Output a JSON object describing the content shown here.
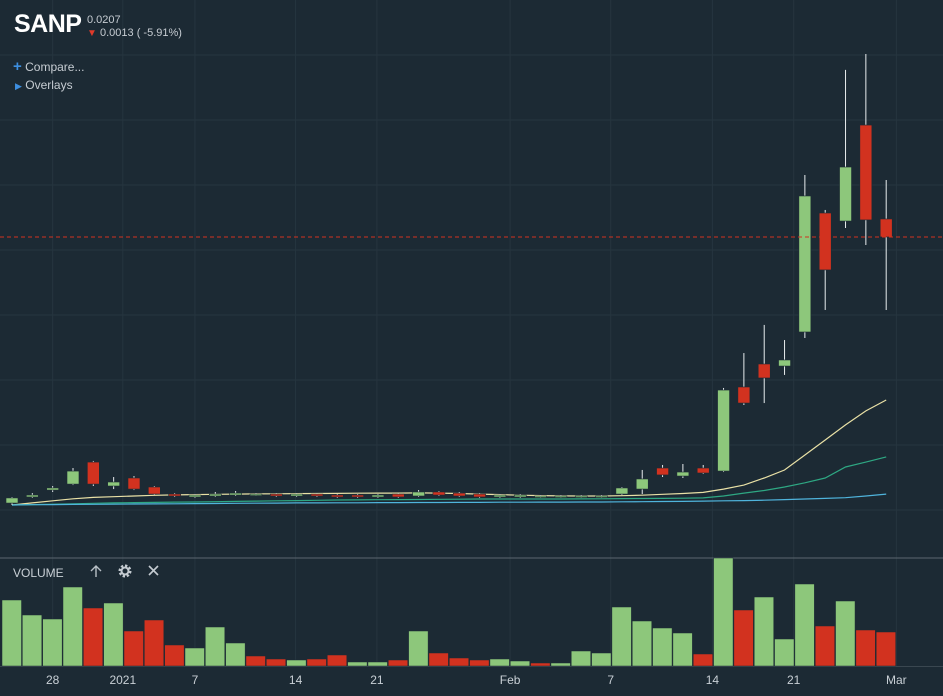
{
  "header": {
    "symbol": "SANP",
    "last_price": 0.0207,
    "change": 0.0013,
    "change_pct": "( -5.91%)"
  },
  "menu": {
    "compare": "Compare...",
    "overlays": "Overlays"
  },
  "chart_data": {
    "type": "candlestick",
    "x_ticks": [
      {
        "value": 2,
        "label": "28"
      },
      {
        "value": 5.45,
        "label": "2021"
      },
      {
        "value": 9,
        "label": "7"
      },
      {
        "value": 13.95,
        "label": "14"
      },
      {
        "value": 17.95,
        "label": "21"
      },
      {
        "value": 24.5,
        "label": "Feb"
      },
      {
        "value": 29.45,
        "label": "7"
      },
      {
        "value": 34.45,
        "label": "14"
      },
      {
        "value": 38.45,
        "label": "21"
      },
      {
        "value": 43.5,
        "label": "Mar"
      }
    ],
    "ylim": [
      0,
      0.03723
    ],
    "open": [
      0.00149,
      0.00193,
      0.00243,
      0.00286,
      0.00445,
      0.00272,
      0.0033,
      0.00265,
      0.00214,
      0.00193,
      0.002,
      0.00207,
      0.00207,
      0.00214,
      0.002,
      0.00214,
      0.00207,
      0.00207,
      0.00193,
      0.00214,
      0.002,
      0.00229,
      0.00221,
      0.00214,
      0.00193,
      0.00193,
      0.00193,
      0.00193,
      0.00193,
      0.00193,
      0.00214,
      0.0025,
      0.00402,
      0.00344,
      0.00402,
      0.0038,
      0.00987,
      0.01153,
      0.01138,
      0.01384,
      0.02243,
      0.02185,
      0.02878,
      0.022
    ],
    "high": [
      0.00193,
      0.00221,
      0.00272,
      0.00402,
      0.00453,
      0.00337,
      0.00344,
      0.00272,
      0.00221,
      0.00214,
      0.00229,
      0.00236,
      0.00221,
      0.00221,
      0.00221,
      0.00221,
      0.00214,
      0.00214,
      0.00214,
      0.00221,
      0.00243,
      0.00236,
      0.00229,
      0.00221,
      0.00214,
      0.00214,
      0.00207,
      0.00207,
      0.00207,
      0.00207,
      0.00265,
      0.00388,
      0.00424,
      0.00431,
      0.00424,
      0.0098,
      0.01232,
      0.01435,
      0.01326,
      0.02517,
      0.02265,
      0.03276,
      0.03391,
      0.02481
    ],
    "low": [
      0.00135,
      0.00186,
      0.00229,
      0.00279,
      0.00272,
      0.0025,
      0.00243,
      0.00207,
      0.00193,
      0.00186,
      0.00193,
      0.002,
      0.002,
      0.00193,
      0.00193,
      0.00193,
      0.00186,
      0.00186,
      0.00186,
      0.00186,
      0.00193,
      0.002,
      0.00193,
      0.00186,
      0.00186,
      0.00186,
      0.00186,
      0.00186,
      0.00186,
      0.00186,
      0.00207,
      0.00214,
      0.00337,
      0.0033,
      0.00359,
      0.00373,
      0.00857,
      0.00871,
      0.01074,
      0.01341,
      0.01543,
      0.02135,
      0.02012,
      0.01543
    ],
    "close": [
      0.00186,
      0.00207,
      0.00258,
      0.0038,
      0.00286,
      0.00301,
      0.0025,
      0.00214,
      0.002,
      0.00207,
      0.00214,
      0.00221,
      0.00214,
      0.002,
      0.00214,
      0.002,
      0.00193,
      0.00193,
      0.00207,
      0.00193,
      0.00229,
      0.00207,
      0.002,
      0.00193,
      0.00207,
      0.00207,
      0.002,
      0.002,
      0.002,
      0.002,
      0.00258,
      0.00323,
      0.00352,
      0.00373,
      0.00366,
      0.00965,
      0.00871,
      0.01052,
      0.01182,
      0.02366,
      0.01832,
      0.02575,
      0.02193,
      0.0207
    ],
    "up_color": "#8dc77b",
    "down_color": "#d2321f",
    "moving_averages": [
      {
        "color": "#e9e1a6",
        "values": [
          0.00135,
          0.0015,
          0.00165,
          0.0018,
          0.0019,
          0.00195,
          0.002,
          0.00205,
          0.00208,
          0.0021,
          0.00212,
          0.00214,
          0.00215,
          0.00216,
          0.00217,
          0.00218,
          0.00219,
          0.0022,
          0.00221,
          0.00221,
          0.00222,
          0.00221,
          0.00218,
          0.00214,
          0.0021,
          0.00206,
          0.00203,
          0.00201,
          0.002,
          0.002,
          0.00202,
          0.00206,
          0.00212,
          0.00218,
          0.00226,
          0.0025,
          0.00279,
          0.0033,
          0.00388,
          0.00496,
          0.00604,
          0.00713,
          0.00814,
          0.00893
        ]
      },
      {
        "color": "#2ea883",
        "values": [
          0.00135,
          0.00138,
          0.00141,
          0.00144,
          0.00147,
          0.0015,
          0.00152,
          0.00154,
          0.00156,
          0.00157,
          0.00159,
          0.00161,
          0.00163,
          0.00165,
          0.00167,
          0.00169,
          0.00171,
          0.00172,
          0.00173,
          0.00174,
          0.00175,
          0.00176,
          0.00177,
          0.00178,
          0.00178,
          0.00178,
          0.00178,
          0.00178,
          0.00179,
          0.0018,
          0.00181,
          0.00182,
          0.00183,
          0.00184,
          0.00186,
          0.002,
          0.00221,
          0.0024,
          0.00265,
          0.00295,
          0.0033,
          0.00409,
          0.00445,
          0.00482
        ]
      },
      {
        "color": "#4fb4dc",
        "values": [
          0.00135,
          0.00137,
          0.00138,
          0.00139,
          0.0014,
          0.00141,
          0.00142,
          0.00143,
          0.00144,
          0.00145,
          0.00146,
          0.00147,
          0.00148,
          0.00149,
          0.0015,
          0.0015,
          0.00151,
          0.00151,
          0.00152,
          0.00152,
          0.00153,
          0.00153,
          0.00154,
          0.00154,
          0.00155,
          0.00155,
          0.00156,
          0.00156,
          0.00157,
          0.00157,
          0.00158,
          0.00159,
          0.0016,
          0.00161,
          0.00163,
          0.00165,
          0.00167,
          0.0017,
          0.00174,
          0.00178,
          0.00183,
          0.00188,
          0.002,
          0.00214
        ]
      }
    ],
    "volume": {
      "label": "VOLUME",
      "ylim": [
        0,
        108
      ],
      "values": [
        66,
        51,
        47,
        79,
        58,
        63,
        35,
        46,
        21,
        18,
        39,
        23,
        10,
        7,
        6,
        7,
        11,
        4,
        4,
        6,
        35,
        13,
        8,
        6,
        7,
        5,
        3,
        3,
        15,
        13,
        59,
        45,
        38,
        33,
        12,
        108,
        56,
        69,
        27,
        82,
        40,
        65,
        36,
        34
      ]
    }
  }
}
